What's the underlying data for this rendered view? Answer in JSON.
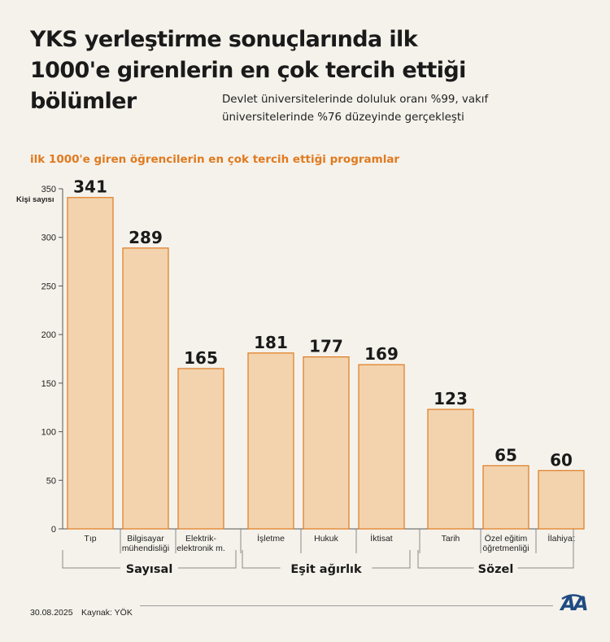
{
  "header": {
    "title": "YKS yerleştirme sonuçlarında ilk 1000'e girenlerin en çok tercih ettiği bölümler",
    "subtitle": "Devlet üniversitelerinde doluluk oranı %99, vakıf üniversitelerinde %76 düzeyinde gerçekleşti"
  },
  "chart_heading": "ilk 1000'e giren öğrencilerin en çok tercih ettiği programlar",
  "footer": {
    "date": "30.08.2025",
    "source": "Kaynak: YÖK",
    "logo_text": "AA"
  },
  "colors": {
    "bar_fill": "#f2d3ad",
    "bar_stroke": "#e07a1f",
    "accent": "#e07a1f",
    "background": "#f5f2eb",
    "logo": "#1e4b82"
  },
  "chart_data": {
    "type": "bar",
    "ylabel": "Kişi sayısı",
    "ylim": [
      0,
      350
    ],
    "yticks": [
      0,
      50,
      100,
      150,
      200,
      250,
      300,
      350
    ],
    "grid": false,
    "categories": [
      [
        "Tıp"
      ],
      [
        "Bilgisayar",
        "mühendisliği"
      ],
      [
        "Elektrik-",
        "elektronik m."
      ],
      [
        "İşletme"
      ],
      [
        "Hukuk"
      ],
      [
        "İktisat"
      ],
      [
        "Tarih"
      ],
      [
        "Özel eğitim",
        "öğretmenliği"
      ],
      [
        "İlahiyat"
      ]
    ],
    "values": [
      341,
      289,
      165,
      181,
      177,
      169,
      123,
      65,
      60
    ],
    "groups": [
      {
        "name": "Sayısal",
        "members": [
          0,
          1,
          2
        ]
      },
      {
        "name": "Eşit ağırlık",
        "members": [
          3,
          4,
          5
        ]
      },
      {
        "name": "Sözel",
        "members": [
          6,
          7,
          8
        ]
      }
    ]
  }
}
